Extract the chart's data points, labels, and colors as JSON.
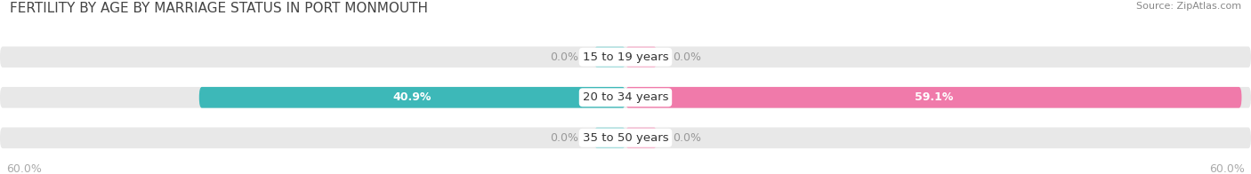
{
  "title": "FERTILITY BY AGE BY MARRIAGE STATUS IN PORT MONMOUTH",
  "source": "Source: ZipAtlas.com",
  "categories": [
    "15 to 19 years",
    "20 to 34 years",
    "35 to 50 years"
  ],
  "married": [
    0.0,
    40.9,
    0.0
  ],
  "unmarried": [
    0.0,
    59.1,
    0.0
  ],
  "married_stub": [
    3.0,
    40.9,
    3.0
  ],
  "unmarried_stub": [
    3.0,
    59.1,
    3.0
  ],
  "xlim": 60.0,
  "married_color": "#3db8b8",
  "unmarried_color": "#f07aaa",
  "married_stub_color": "#a8dede",
  "unmarried_stub_color": "#f5b8cf",
  "bar_bg_color": "#e8e8e8",
  "bar_height": 0.52,
  "label_color_white": "#ffffff",
  "label_color_dark": "#666666",
  "label_color_zero": "#999999",
  "title_fontsize": 11,
  "source_fontsize": 8,
  "tick_fontsize": 9,
  "legend_fontsize": 10,
  "cat_label_fontsize": 9.5,
  "val_label_fontsize": 9,
  "axis_label_color": "#aaaaaa",
  "background_color": "#ffffff",
  "bar_gap": 0.18
}
